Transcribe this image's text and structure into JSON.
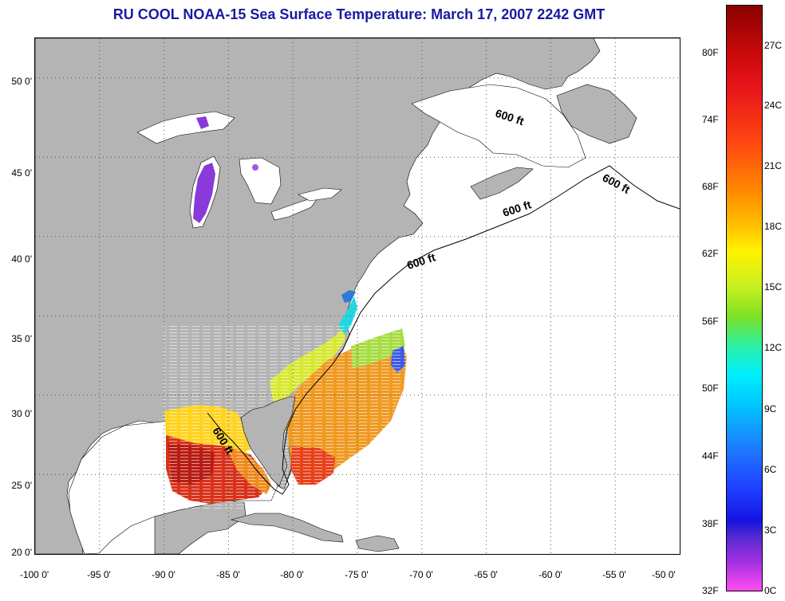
{
  "title": "RU COOL  NOAA-15  Sea Surface Temperature:  March 17, 2007 2242 GMT",
  "axes": {
    "x_ticks": [
      "-100 0'",
      "-95 0'",
      "-90 0'",
      "-85 0'",
      "-80 0'",
      "-75 0'",
      "-70 0'",
      "-65 0'",
      "-60 0'",
      "-55 0'",
      "-50 0'"
    ],
    "y_ticks": [
      "50 0'",
      "45 0'",
      "40 0'",
      "35 0'",
      "30 0'",
      "25 0'",
      "20 0'"
    ],
    "lon_range": [
      -100,
      -50
    ],
    "lat_range": [
      20,
      52.5
    ],
    "grid": "dotted"
  },
  "isobath_labels": [
    "600 ft",
    "600 ft",
    "600 ft",
    "600 ft",
    "600 ft"
  ],
  "colorbar": {
    "fahrenheit_labels": [
      "80F",
      "74F",
      "68F",
      "62F",
      "56F",
      "50F",
      "44F",
      "38F",
      "32F"
    ],
    "celsius_labels": [
      "27C",
      "24C",
      "21C",
      "18C",
      "15C",
      "12C",
      "9C",
      "6C",
      "3C",
      "0C"
    ],
    "colors": {
      "top": "#8b0000",
      "red": "#e8141a",
      "orange": "#ff8c00",
      "yellow": "#fff200",
      "green": "#7fe022",
      "cyan": "#00f0ff",
      "blue": "#1e3cff",
      "purple": "#7a30d8",
      "magenta": "#ff4df0"
    }
  },
  "colors": {
    "land": "#b4b4b4",
    "ocean": "#ffffff",
    "title": "#1a1aa0"
  }
}
